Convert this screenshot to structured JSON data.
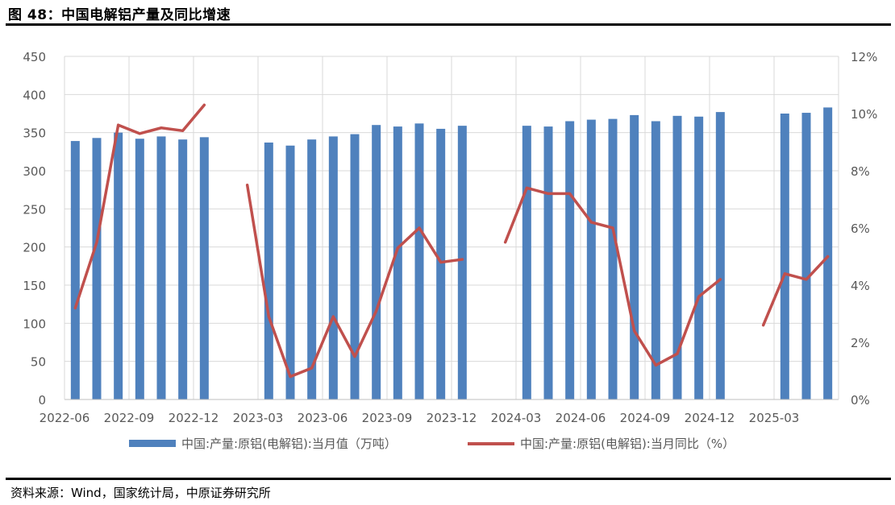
{
  "title": "图 48：中国电解铝产量及同比增速",
  "source": "资料来源：Wind，国家统计局，中原证券研究所",
  "colors": {
    "bar": "#4f81bd",
    "line": "#c0504d",
    "grid": "#d9d9d9",
    "axis": "#bfbfbf"
  },
  "chart_data": {
    "type": "bar+line",
    "x_tick_labels": [
      "2022-06",
      "2022-09",
      "2022-12",
      "2023-03",
      "2023-06",
      "2023-09",
      "2023-12",
      "2024-03",
      "2024-06",
      "2024-09",
      "2024-12",
      "2025-03"
    ],
    "y_left": {
      "ticks": [
        "0",
        "50",
        "100",
        "150",
        "200",
        "250",
        "300",
        "350",
        "400",
        "450"
      ],
      "range": [
        0,
        450
      ]
    },
    "y_right": {
      "ticks": [
        "0%",
        "2%",
        "4%",
        "6%",
        "8%",
        "10%",
        "12%"
      ],
      "range": [
        0,
        12
      ]
    },
    "grid": true,
    "legend_position": "bottom",
    "months": [
      "2022-06",
      "2022-07",
      "2022-08",
      "2022-09",
      "2022-10",
      "2022-11",
      "2022-12",
      "2023-01",
      "2023-02",
      "2023-03",
      "2023-04",
      "2023-05",
      "2023-06",
      "2023-07",
      "2023-08",
      "2023-09",
      "2023-10",
      "2023-11",
      "2023-12",
      "2024-01",
      "2024-02",
      "2024-03",
      "2024-04",
      "2024-05",
      "2024-06",
      "2024-07",
      "2024-08",
      "2024-09",
      "2024-10",
      "2024-11",
      "2024-12",
      "2025-01",
      "2025-02",
      "2025-03",
      "2025-04",
      "2025-05"
    ],
    "series": [
      {
        "name": "中国:产量:原铝(电解铝):当月值（万吨）",
        "type": "bar",
        "axis": "left",
        "values": [
          339,
          343,
          350,
          342,
          345,
          341,
          344,
          null,
          null,
          337,
          333,
          341,
          345,
          348,
          360,
          358,
          362,
          355,
          359,
          null,
          null,
          359,
          358,
          365,
          367,
          368,
          373,
          365,
          372,
          371,
          377,
          null,
          null,
          375,
          376,
          383
        ]
      },
      {
        "name": "中国:产量:原铝(电解铝):当月同比（%）",
        "type": "line",
        "axis": "right",
        "values": [
          3.2,
          5.5,
          9.6,
          9.3,
          9.5,
          9.4,
          10.3,
          null,
          7.5,
          2.9,
          0.8,
          1.1,
          2.9,
          1.5,
          3.1,
          5.3,
          6.0,
          4.8,
          4.9,
          null,
          5.5,
          7.4,
          7.2,
          7.2,
          6.2,
          6.0,
          2.4,
          1.2,
          1.6,
          3.6,
          4.2,
          null,
          2.6,
          4.4,
          4.2,
          5.0
        ]
      }
    ]
  }
}
